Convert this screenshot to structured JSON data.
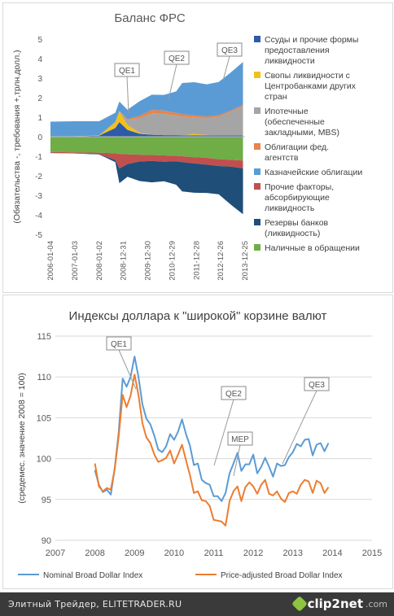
{
  "footer": {
    "text": "Элитный Трейдер, ELITETRADER.RU",
    "logo_main": "clip2net",
    "logo_sub": ".com"
  },
  "chart_data": [
    {
      "type": "area",
      "title": "Баланс ФРС",
      "ylabel": "(Обязательства -, требования +,трлн.долл.)",
      "ylim": [
        -5,
        5
      ],
      "yticks": [
        -5,
        -4,
        -3,
        -2,
        -1,
        0,
        1,
        2,
        3,
        4,
        5
      ],
      "x_tick_labels": [
        "2006-01-04",
        "2007-01-03",
        "2008-01-02",
        "2008-12-31",
        "2009-12-30",
        "2010-12-29",
        "2011-12-28",
        "2012-12-26",
        "2013-12-25"
      ],
      "x": [
        "2006-01",
        "2007-01",
        "2008-01",
        "2008-09",
        "2008-11",
        "2009-03",
        "2009-09",
        "2010-03",
        "2010-09",
        "2011-03",
        "2011-06",
        "2011-12",
        "2012-06",
        "2012-12",
        "2013-06",
        "2013-12"
      ],
      "legend_position": "right",
      "annotations": [
        {
          "label": "QE1",
          "date": "2008-11"
        },
        {
          "label": "QE2",
          "date": "2010-11"
        },
        {
          "label": "QE3",
          "date": "2012-09"
        }
      ],
      "assets": [
        {
          "name": "Ссуды и прочие формы предоставления ликвидности",
          "color": "#2e5aa8",
          "values": [
            0.02,
            0.02,
            0.05,
            0.45,
            0.75,
            0.35,
            0.15,
            0.1,
            0.08,
            0.08,
            0.07,
            0.06,
            0.06,
            0.06,
            0.06,
            0.06
          ]
        },
        {
          "name": "Свопы ликвидности с Центробанками других стран",
          "color": "#f2c018",
          "values": [
            0,
            0,
            0.02,
            0.3,
            0.55,
            0.25,
            0.05,
            0,
            0,
            0,
            0,
            0.08,
            0.03,
            0.01,
            0.01,
            0.01
          ]
        },
        {
          "name": "Ипотечные (обеспеченные закладными, MBS)",
          "color": "#a5a5a5",
          "values": [
            0,
            0,
            0,
            0,
            0,
            0.25,
            0.75,
            1.1,
            1.1,
            1.0,
            0.95,
            0.85,
            0.85,
            0.95,
            1.2,
            1.5
          ]
        },
        {
          "name": "Облигации фед. агентств",
          "color": "#e8844a",
          "values": [
            0,
            0,
            0,
            0,
            0.02,
            0.05,
            0.12,
            0.17,
            0.16,
            0.14,
            0.13,
            0.1,
            0.09,
            0.08,
            0.07,
            0.06
          ]
        },
        {
          "name": "Казначейские облигации",
          "color": "#5b9bd5",
          "values": [
            0.75,
            0.77,
            0.72,
            0.48,
            0.48,
            0.48,
            0.75,
            0.78,
            0.8,
            1.1,
            1.6,
            1.7,
            1.65,
            1.7,
            1.95,
            2.2
          ]
        }
      ],
      "liabilities": [
        {
          "name": "Наличные в обращении",
          "color": "#70ad47",
          "values": [
            -0.78,
            -0.8,
            -0.82,
            -0.85,
            -0.88,
            -0.9,
            -0.92,
            -0.94,
            -0.96,
            -0.98,
            -1.0,
            -1.05,
            -1.08,
            -1.15,
            -1.18,
            -1.22
          ]
        },
        {
          "name": "Прочие факторы, абсорбирующие ликвидность",
          "color": "#c0504d",
          "values": [
            -0.05,
            -0.05,
            -0.07,
            -0.35,
            -0.75,
            -0.5,
            -0.35,
            -0.3,
            -0.32,
            -0.28,
            -0.3,
            -0.32,
            -0.35,
            -0.35,
            -0.35,
            -0.4
          ]
        },
        {
          "name": "Резервы банков (ликвидность)",
          "color": "#1f4e79",
          "values": [
            -0.01,
            -0.01,
            -0.02,
            -0.1,
            -0.75,
            -0.65,
            -1.0,
            -1.1,
            -1.0,
            -1.2,
            -1.5,
            -1.5,
            -1.45,
            -1.45,
            -1.95,
            -2.35
          ]
        }
      ]
    },
    {
      "type": "line",
      "title": "Индексы доллара к \"широкой\" корзине валют",
      "ylabel": "(средемес. значение 2008 = 100)",
      "xlim": [
        2007,
        2015
      ],
      "ylim": [
        90,
        115
      ],
      "xticks": [
        2007,
        2008,
        2009,
        2010,
        2011,
        2012,
        2013,
        2014,
        2015
      ],
      "yticks": [
        90,
        95,
        100,
        105,
        110,
        115
      ],
      "legend_position": "bottom",
      "x": [
        2008.0,
        2008.1,
        2008.2,
        2008.3,
        2008.4,
        2008.5,
        2008.6,
        2008.7,
        2008.8,
        2008.9,
        2009.0,
        2009.1,
        2009.2,
        2009.3,
        2009.4,
        2009.5,
        2009.6,
        2009.7,
        2009.8,
        2009.9,
        2010.0,
        2010.1,
        2010.2,
        2010.3,
        2010.4,
        2010.5,
        2010.6,
        2010.7,
        2010.8,
        2010.9,
        2011.0,
        2011.1,
        2011.2,
        2011.3,
        2011.4,
        2011.5,
        2011.6,
        2011.7,
        2011.8,
        2011.9,
        2012.0,
        2012.1,
        2012.2,
        2012.3,
        2012.4,
        2012.5,
        2012.6,
        2012.7,
        2012.8,
        2012.9,
        2013.0,
        2013.1,
        2013.2,
        2013.3,
        2013.4,
        2013.5,
        2013.6,
        2013.7,
        2013.8,
        2013.9
      ],
      "series": [
        {
          "name": "Nominal Broad Dollar Index",
          "color": "#5b9bd5",
          "values": [
            98.6,
            96.8,
            95.9,
            96.2,
            95.6,
            98.8,
            103.2,
            109.8,
            108.8,
            110.0,
            112.5,
            110.0,
            106.6,
            104.9,
            104.2,
            102.8,
            101.1,
            100.8,
            101.5,
            103.0,
            102.3,
            103.3,
            104.8,
            103.0,
            101.6,
            99.2,
            99.4,
            97.4,
            97.0,
            96.8,
            95.4,
            95.4,
            94.8,
            95.8,
            98.2,
            99.4,
            100.7,
            98.5,
            99.3,
            99.3,
            100.5,
            98.2,
            99.0,
            100.1,
            99.0,
            97.8,
            99.4,
            99.1,
            99.2,
            100.2,
            100.8,
            101.8,
            101.5,
            102.3,
            102.4,
            100.4,
            101.7,
            101.9,
            100.9,
            101.9
          ]
        },
        {
          "name": "Price-adjusted Broad Dollar Index",
          "color": "#ed7d31",
          "values": [
            99.4,
            96.6,
            96.0,
            96.4,
            96.2,
            98.7,
            102.7,
            107.8,
            106.3,
            107.7,
            110.3,
            107.8,
            104.3,
            102.6,
            101.9,
            100.5,
            99.6,
            99.8,
            100.1,
            101.0,
            99.4,
            100.5,
            101.7,
            99.8,
            98.0,
            95.8,
            96.0,
            94.9,
            94.8,
            94.2,
            92.5,
            92.4,
            92.3,
            91.8,
            94.8,
            96.0,
            96.6,
            94.8,
            96.5,
            97.1,
            96.6,
            95.7,
            96.8,
            97.4,
            95.7,
            95.5,
            96.0,
            95.1,
            94.7,
            95.8,
            96.0,
            95.7,
            96.8,
            97.4,
            97.2,
            95.8,
            97.3,
            97.0,
            95.8,
            96.5
          ]
        }
      ],
      "annotations": [
        {
          "label": "QE1",
          "x": 2008.9
        },
        {
          "label": "QE2",
          "x": 2010.9
        },
        {
          "label": "MEP",
          "x": 2011.7
        },
        {
          "label": "QE3",
          "x": 2012.7
        }
      ]
    }
  ]
}
